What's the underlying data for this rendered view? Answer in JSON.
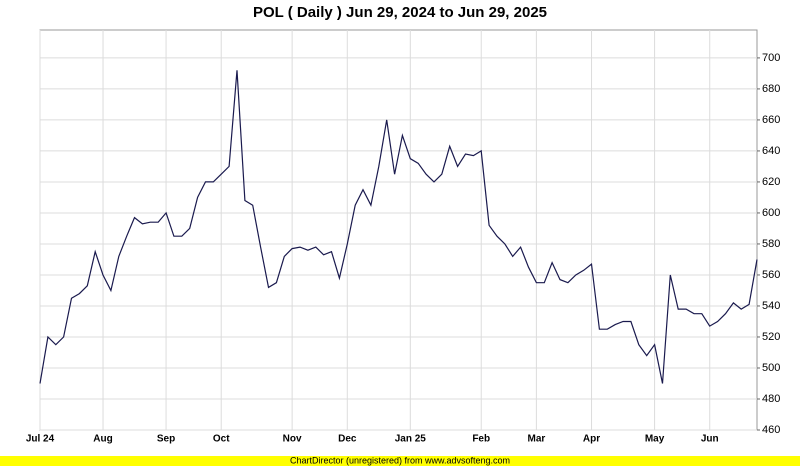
{
  "chart_data": {
    "type": "line",
    "title": "POL ( Daily ) Jun 29, 2024 to Jun 29, 2025",
    "footer": "ChartDirector (unregistered) from www.advsofteng.com",
    "categories": [
      "Jul 24",
      null,
      null,
      null,
      null,
      null,
      null,
      null,
      "Aug",
      null,
      null,
      null,
      null,
      null,
      null,
      null,
      "Sep",
      null,
      null,
      null,
      null,
      null,
      null,
      "Oct",
      null,
      null,
      null,
      null,
      null,
      null,
      null,
      null,
      "Nov",
      null,
      null,
      null,
      null,
      null,
      null,
      "Dec",
      null,
      null,
      null,
      null,
      null,
      null,
      null,
      "Jan 25",
      null,
      null,
      null,
      null,
      null,
      null,
      null,
      null,
      "Feb",
      null,
      null,
      null,
      null,
      null,
      null,
      "Mar",
      null,
      null,
      null,
      null,
      null,
      null,
      "Apr",
      null,
      null,
      null,
      null,
      null,
      null,
      null,
      "May",
      null,
      null,
      null,
      null,
      null,
      null,
      "Jun",
      null,
      null,
      null,
      null,
      null,
      null
    ],
    "series": [
      {
        "name": "POL",
        "color": "#1a1a4e",
        "values": [
          490,
          520,
          515,
          520,
          545,
          548,
          553,
          575,
          560,
          550,
          572,
          585,
          597,
          593,
          594,
          594,
          600,
          585,
          585,
          590,
          610,
          620,
          620,
          625,
          630,
          692,
          608,
          605,
          578,
          552,
          555,
          572,
          577,
          578,
          576,
          578,
          573,
          575,
          558,
          580,
          605,
          615,
          605,
          630,
          660,
          625,
          650,
          635,
          632,
          625,
          620,
          625,
          643,
          630,
          638,
          637,
          640,
          592,
          585,
          580,
          572,
          578,
          565,
          555,
          555,
          568,
          557,
          555,
          560,
          563,
          567,
          525,
          525,
          528,
          530,
          530,
          515,
          508,
          515,
          490,
          560,
          538,
          538,
          535,
          535,
          527,
          530,
          535,
          542,
          538,
          541,
          570
        ]
      }
    ],
    "ylim": [
      460,
      718
    ],
    "yticks": [
      460,
      480,
      500,
      520,
      540,
      560,
      580,
      600,
      620,
      640,
      660,
      680,
      700
    ],
    "grid": true
  }
}
